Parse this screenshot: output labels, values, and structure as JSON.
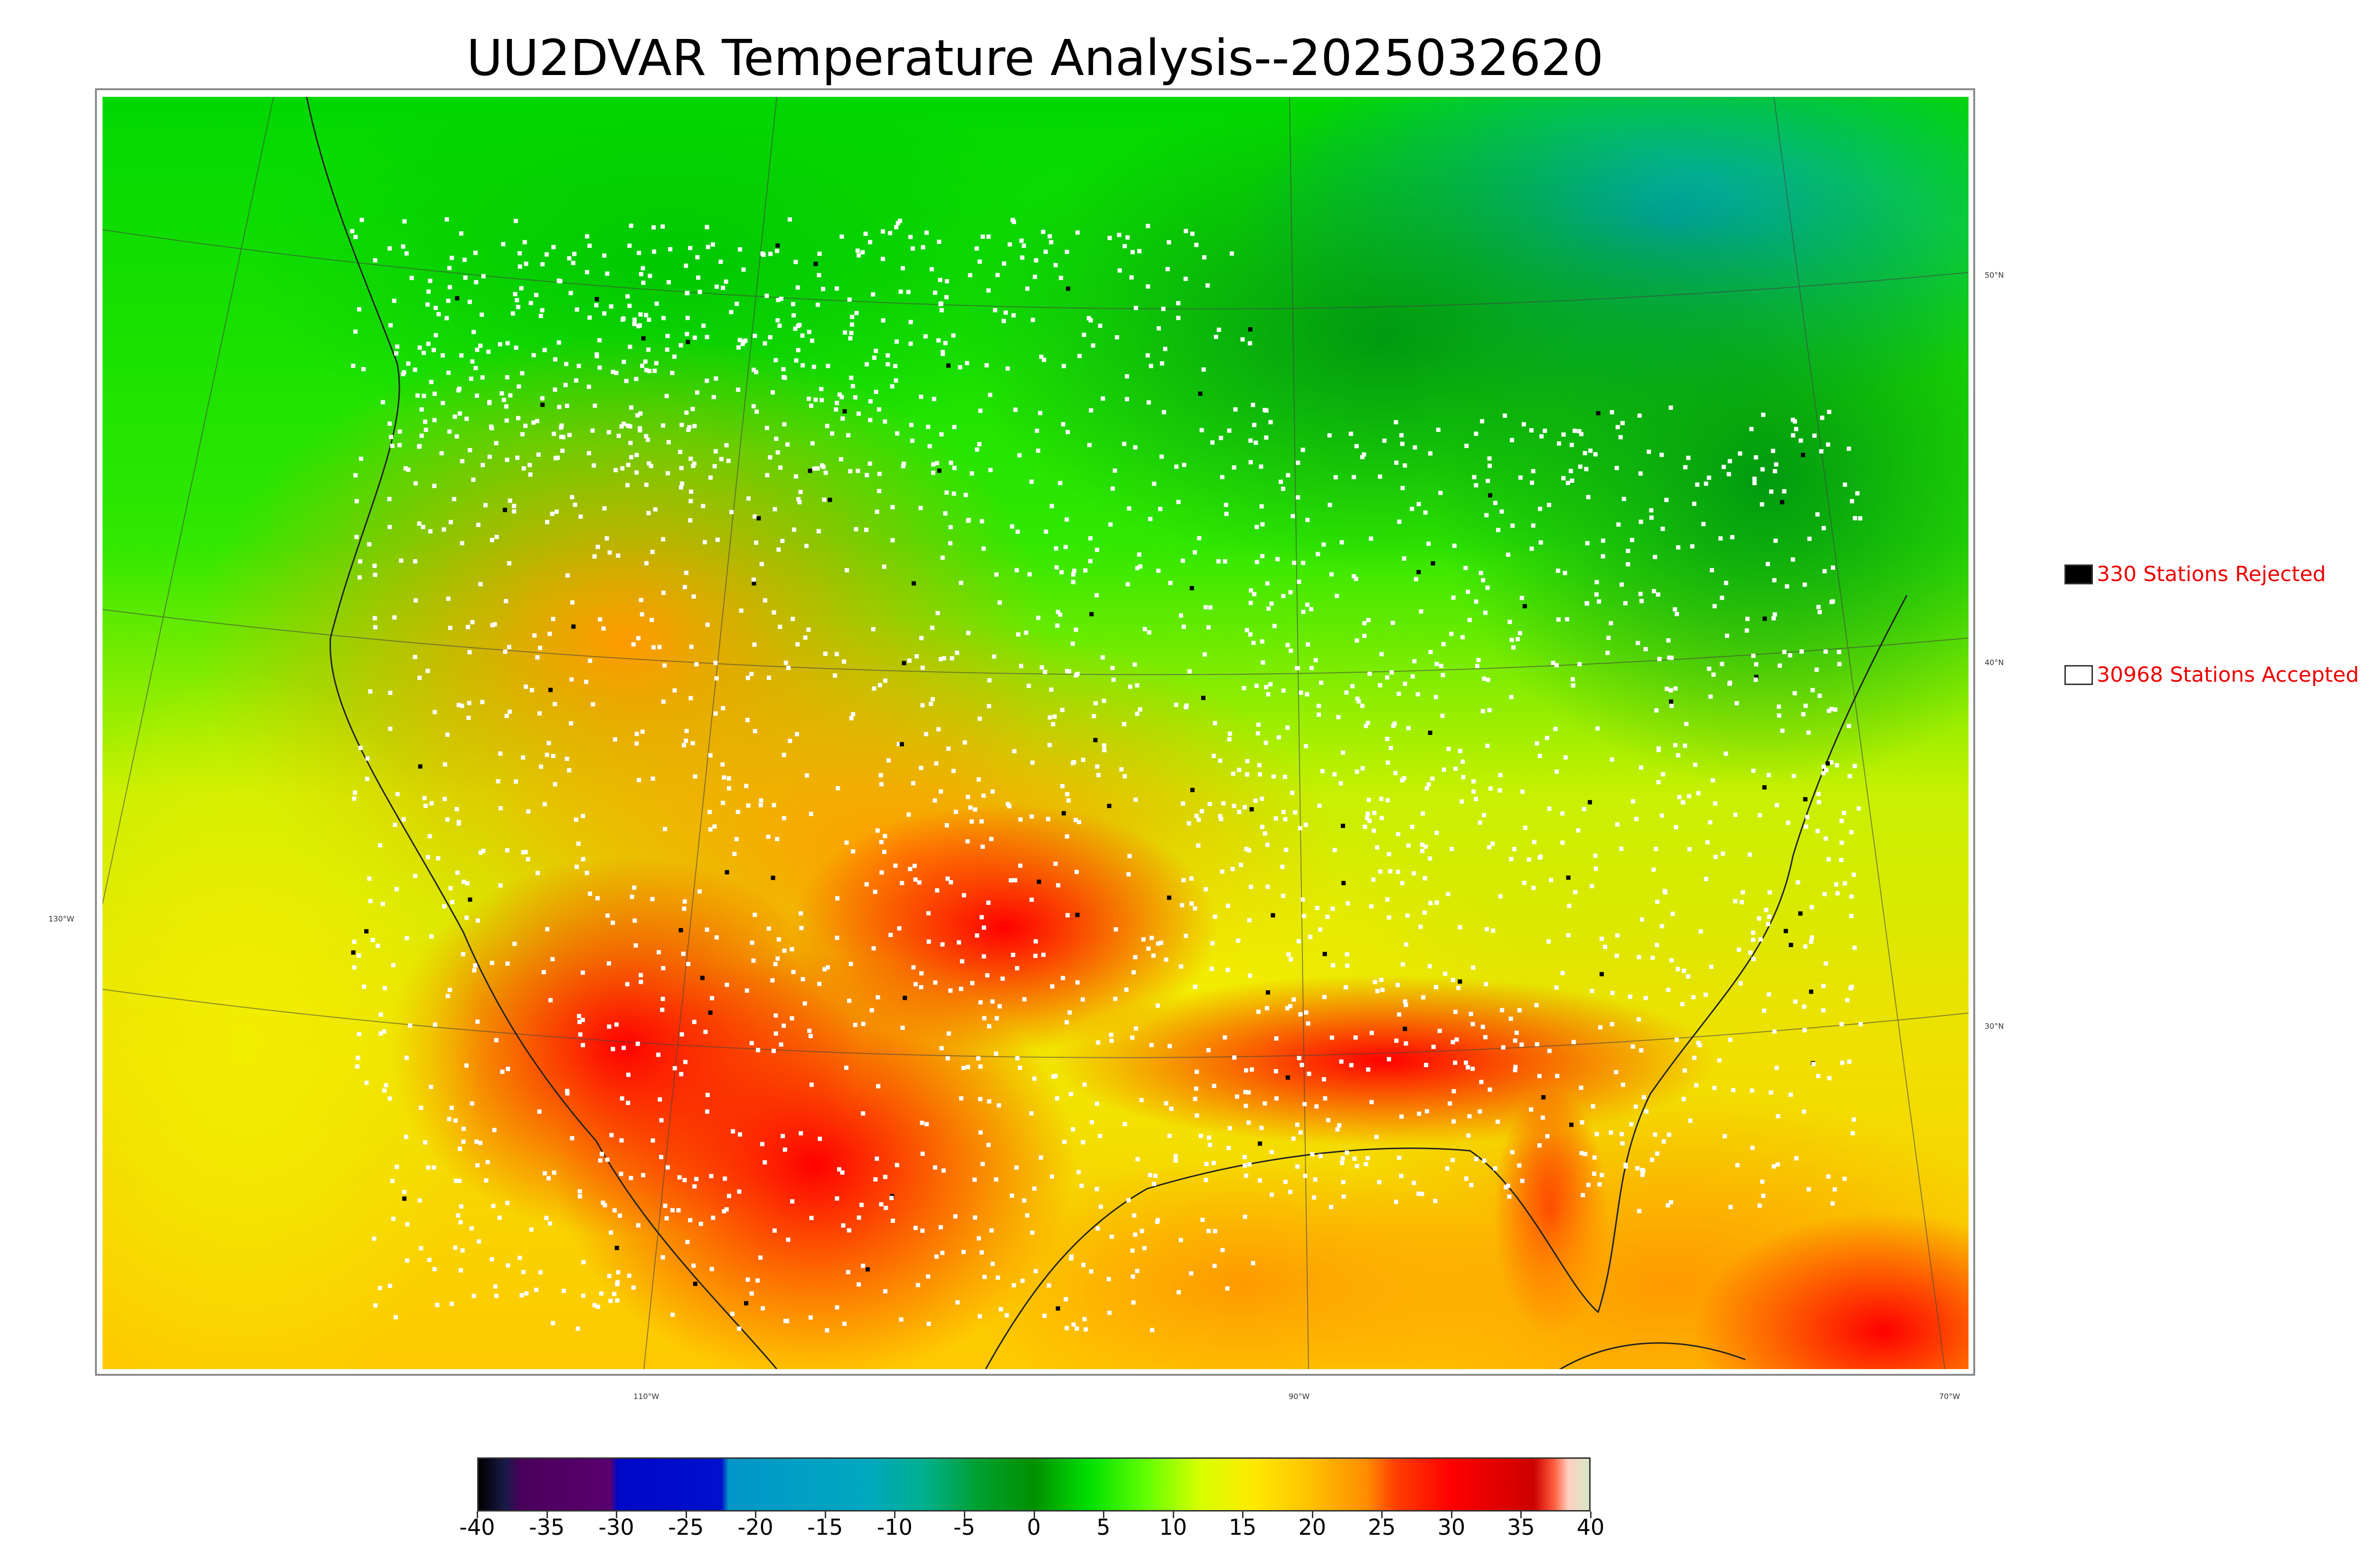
{
  "title": "UU2DVAR Temperature Analysis--2025032620",
  "map": {
    "lat_labels": [
      "50°N",
      "40°N",
      "30°N"
    ],
    "lon_labels": [
      "130°W",
      "110°W",
      "90°W",
      "70°W"
    ],
    "station_colors": {
      "accepted": "#ffffff",
      "rejected": "#000000"
    }
  },
  "legend": {
    "rejected_label": "330 Stations Rejected",
    "accepted_label": "30968 Stations Accepted"
  },
  "colorbar": {
    "min": -40,
    "max": 40,
    "tick_labels": [
      "-40",
      "-35",
      "-30",
      "-25",
      "-20",
      "-15",
      "-10",
      "-5",
      "0",
      "5",
      "10",
      "15",
      "20",
      "25",
      "30",
      "35",
      "40"
    ],
    "stops": [
      {
        "value": -40,
        "color": "#000000"
      },
      {
        "value": -38,
        "color": "#1a1a4a"
      },
      {
        "value": -37,
        "color": "#4a005a"
      },
      {
        "value": -30.5,
        "color": "#5a0070"
      },
      {
        "value": -30,
        "color": "#0008c8"
      },
      {
        "value": -22.5,
        "color": "#0010cc"
      },
      {
        "value": -22,
        "color": "#0096c8"
      },
      {
        "value": -12,
        "color": "#00a8c0"
      },
      {
        "value": -8,
        "color": "#00b090"
      },
      {
        "value": -4,
        "color": "#00a030"
      },
      {
        "value": 0,
        "color": "#009000"
      },
      {
        "value": 4,
        "color": "#00e000"
      },
      {
        "value": 8,
        "color": "#60ff00"
      },
      {
        "value": 12,
        "color": "#d8ff00"
      },
      {
        "value": 16,
        "color": "#ffe800"
      },
      {
        "value": 20,
        "color": "#ffc000"
      },
      {
        "value": 24,
        "color": "#ff8c00"
      },
      {
        "value": 26,
        "color": "#ff4000"
      },
      {
        "value": 30,
        "color": "#ff0000"
      },
      {
        "value": 34,
        "color": "#dd0000"
      },
      {
        "value": 36,
        "color": "#cc0000"
      },
      {
        "value": 37.5,
        "color": "#ff6040"
      },
      {
        "value": 38.5,
        "color": "#ffd0c0"
      },
      {
        "value": 40,
        "color": "#d8e8c8"
      }
    ]
  }
}
